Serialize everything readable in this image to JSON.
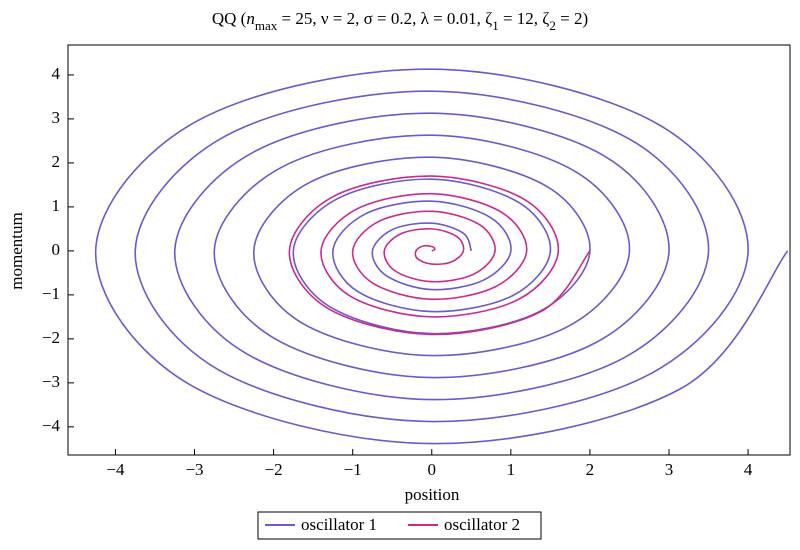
{
  "chart_data": {
    "type": "line",
    "title": [
      "QQ  (",
      "n",
      "max",
      " = 25, ν = 2, σ = 0.2, λ = 0.01, ζ",
      "1",
      " = 12, ζ",
      "2",
      " = 2)"
    ],
    "title_styles": [
      "normal",
      "italic",
      "sub",
      "normal",
      "sub",
      "normal",
      "sub",
      "normal"
    ],
    "x_label": "position",
    "y_label": "momentum",
    "xlim": [
      -4.6,
      4.53
    ],
    "ylim": [
      -4.64,
      4.68
    ],
    "xticks": [
      {
        "value": -4,
        "label": "−4"
      },
      {
        "value": -3,
        "label": "−3"
      },
      {
        "value": -2,
        "label": "−2"
      },
      {
        "value": -1,
        "label": "−1"
      },
      0,
      1,
      2,
      3,
      4
    ],
    "yticks": [
      {
        "value": -4,
        "label": "−4"
      },
      {
        "value": -3,
        "label": "−3"
      },
      {
        "value": -2,
        "label": "−2"
      },
      {
        "value": -1,
        "label": "−1"
      },
      0,
      1,
      2,
      3,
      4
    ],
    "legend": "bottom",
    "series": [
      {
        "name": "oscillator 1",
        "color": "#6a5acd",
        "x": [
          0.5,
          0.4,
          0,
          -0.49,
          -0.75,
          -0.57,
          0,
          0.66,
          1,
          0.75,
          0,
          -0.84,
          -1.25,
          -0.93,
          0,
          1.02,
          1.5,
          1.1,
          0,
          -1.19,
          -1.75,
          -1.28,
          0,
          1.37,
          2,
          1.46,
          0,
          -1.55,
          -2.25,
          -1.64,
          0,
          1.72,
          2.5,
          1.81,
          0,
          -1.9,
          -2.75,
          -1.99,
          0,
          2.08,
          3,
          2.17,
          0,
          -2.25,
          -3.25,
          -2.34,
          0,
          2.43,
          3.5,
          2.52,
          0,
          -2.61,
          -3.75,
          -2.7,
          0,
          2.78,
          4,
          2.87,
          0,
          -2.96,
          -4.25,
          -3.05,
          0,
          3.14,
          4.5
        ],
        "values": [
          0,
          0.4,
          0.63,
          0.49,
          0,
          -0.57,
          -0.88,
          -0.66,
          0,
          0.75,
          1.13,
          0.84,
          0,
          -0.93,
          -1.38,
          -1.02,
          0,
          1.1,
          1.63,
          1.19,
          0,
          -1.28,
          -1.88,
          -1.37,
          0,
          1.46,
          2.13,
          1.55,
          0,
          -1.64,
          -2.38,
          -1.72,
          0,
          1.81,
          2.63,
          1.9,
          0,
          -1.99,
          -2.88,
          -2.08,
          0,
          2.17,
          3.13,
          2.25,
          0,
          -2.34,
          -3.38,
          -2.43,
          0,
          2.52,
          3.63,
          2.61,
          0,
          -2.7,
          -3.88,
          -2.78,
          0,
          2.87,
          4.13,
          2.96,
          0,
          -3.05,
          -4.38,
          -3.14,
          0
        ]
      },
      {
        "name": "oscillator 2",
        "color": "#cc2a8a",
        "x": [
          0,
          0.04,
          0,
          -0.11,
          -0.2,
          -0.18,
          0,
          0.25,
          0.4,
          0.32,
          0,
          -0.39,
          -0.6,
          -0.46,
          0,
          0.53,
          0.8,
          0.6,
          0,
          -0.67,
          -1,
          -0.74,
          0,
          0.81,
          1.2,
          0.88,
          0,
          -0.95,
          -1.4,
          -1.03,
          0,
          1.1,
          1.6,
          1.17,
          0,
          -1.24,
          -1.8,
          -1.31,
          0,
          1.38,
          2
        ],
        "values": [
          0,
          0.04,
          0.1,
          0.11,
          0,
          -0.18,
          -0.3,
          -0.25,
          0,
          0.32,
          0.5,
          0.39,
          0,
          -0.46,
          -0.7,
          -0.53,
          0,
          0.6,
          0.9,
          0.67,
          0,
          -0.74,
          -1.1,
          -0.81,
          0,
          0.88,
          1.3,
          0.95,
          0,
          -1.03,
          -1.5,
          -1.1,
          0,
          1.17,
          1.7,
          1.24,
          0,
          -1.31,
          -1.9,
          -1.38,
          0
        ]
      }
    ]
  }
}
